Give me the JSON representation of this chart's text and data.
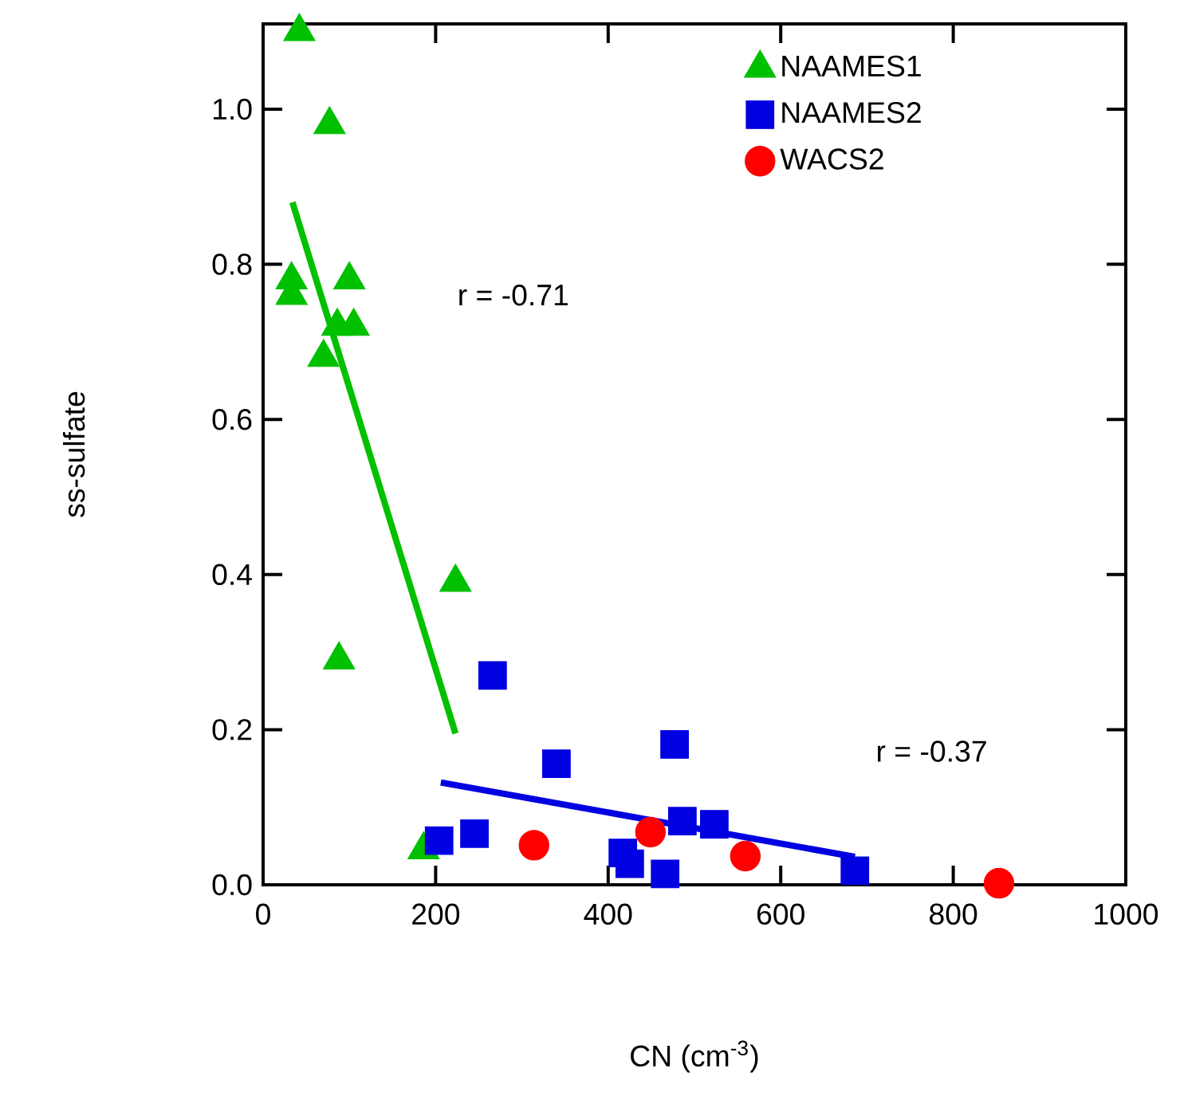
{
  "chart_data": {
    "type": "scatter",
    "xlabel": "CN (cm$^{-3}$)",
    "ylabel": "ss-sulfate",
    "xlim": [
      0,
      1000
    ],
    "ylim": [
      0,
      1.11
    ],
    "xticks": [
      0,
      200,
      400,
      600,
      800,
      1000
    ],
    "yticks": [
      {
        "value": 0,
        "label": "0.0"
      },
      {
        "value": 0.2,
        "label": "0.2"
      },
      {
        "value": 0.4,
        "label": "0.4"
      },
      {
        "value": 0.6,
        "label": "0.6"
      },
      {
        "value": 0.8,
        "label": "0.8"
      },
      {
        "value": 1.0,
        "label": "1.0"
      }
    ],
    "grid": false,
    "legend": "top right",
    "series": [
      {
        "name": "NAAMES1",
        "marker": "triangle",
        "color": "#00c000",
        "x": [
          42,
          77,
          33,
          33,
          100,
          86,
          105,
          70,
          223,
          88,
          186
        ],
        "values": [
          1.1,
          0.98,
          0.78,
          0.76,
          0.78,
          0.72,
          0.72,
          0.68,
          0.39,
          0.29,
          0.045
        ]
      },
      {
        "name": "NAAMES2",
        "marker": "square",
        "color": "#0000e0",
        "x": [
          266,
          340,
          204,
          245,
          477,
          486,
          523,
          417,
          425,
          466,
          686
        ],
        "values": [
          0.27,
          0.156,
          0.057,
          0.066,
          0.181,
          0.082,
          0.078,
          0.041,
          0.027,
          0.014,
          0.018
        ]
      },
      {
        "name": "WACS2",
        "marker": "circle",
        "color": "#ff0000",
        "x": [
          314,
          449,
          559,
          853
        ],
        "values": [
          0.051,
          0.068,
          0.037,
          0.002
        ]
      },
      {
        "type": "line",
        "marker": "none",
        "color": "#00c000",
        "x": [
          34,
          223
        ],
        "values": [
          0.88,
          0.195
        ]
      },
      {
        "type": "line",
        "marker": "none",
        "color": "#0000e0",
        "x": [
          206,
          686
        ],
        "values": [
          0.132,
          0.036
        ]
      }
    ],
    "annotations": [
      "r = -0.71",
      "r = -0.37"
    ]
  }
}
